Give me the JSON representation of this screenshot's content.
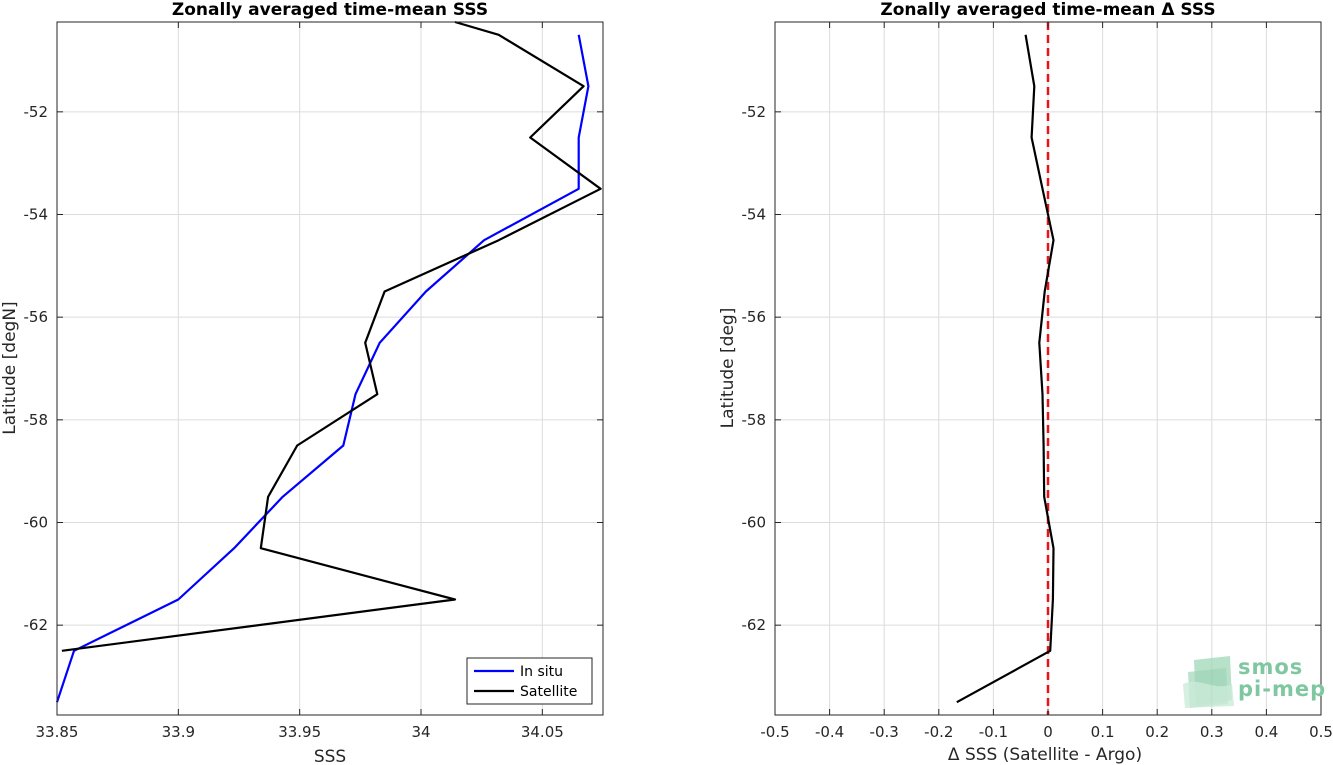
{
  "colors": {
    "in_situ": "#0000ff",
    "satellite": "#000000",
    "zero_line": "#e8141c",
    "grid": "#dcdcdc",
    "axis": "#262626",
    "logo": "#7fc7a0"
  },
  "logo": {
    "line1": "smos",
    "line2": "pi-mep",
    "icon": "layered-wave-icon"
  },
  "chart_data": [
    {
      "type": "line",
      "title": "Zonally averaged time-mean SSS",
      "xlabel": "SSS",
      "ylabel": "Latitude [degN]",
      "xlim": [
        33.85,
        34.075
      ],
      "ylim": [
        -63.75,
        -50.25
      ],
      "xticks": [
        33.85,
        33.9,
        33.95,
        34,
        34.05
      ],
      "xtick_labels": [
        "33.85",
        "33.9",
        "33.95",
        "34",
        "34.05"
      ],
      "yticks": [
        -62,
        -60,
        -58,
        -56,
        -54,
        -52
      ],
      "ytick_labels": [
        "-62",
        "-60",
        "-58",
        "-56",
        "-54",
        "-52"
      ],
      "grid": true,
      "legend_position": "bottom-right",
      "series": [
        {
          "name": "In situ",
          "color": "#0000ff",
          "points": [
            [
              34.065,
              -50.5
            ],
            [
              34.069,
              -51.5
            ],
            [
              34.065,
              -52.5
            ],
            [
              34.065,
              -53.5
            ],
            [
              34.026,
              -54.5
            ],
            [
              34.002,
              -55.5
            ],
            [
              33.983,
              -56.5
            ],
            [
              33.973,
              -57.5
            ],
            [
              33.968,
              -58.5
            ],
            [
              33.943,
              -59.5
            ],
            [
              33.923,
              -60.5
            ],
            [
              33.9,
              -61.5
            ],
            [
              33.857,
              -62.5
            ],
            [
              33.85,
              -63.5
            ]
          ]
        },
        {
          "name": "Satellite",
          "color": "#000000",
          "points": [
            [
              34.014,
              -50.25
            ],
            [
              34.032,
              -50.5
            ],
            [
              34.067,
              -51.5
            ],
            [
              34.045,
              -52.5
            ],
            [
              34.074,
              -53.5
            ],
            [
              34.032,
              -54.5
            ],
            [
              33.985,
              -55.5
            ],
            [
              33.977,
              -56.5
            ],
            [
              33.982,
              -57.5
            ],
            [
              33.949,
              -58.5
            ],
            [
              33.937,
              -59.5
            ],
            [
              33.934,
              -60.5
            ],
            [
              34.014,
              -61.5
            ],
            [
              33.852,
              -62.5
            ]
          ]
        }
      ]
    },
    {
      "type": "line",
      "title": "Zonally averaged time-mean Δ SSS",
      "xlabel": "Δ SSS (Satellite - Argo)",
      "ylabel": "Latitude [deg]",
      "xlim": [
        -0.5,
        0.5
      ],
      "ylim": [
        -63.75,
        -50.25
      ],
      "xticks": [
        -0.5,
        -0.4,
        -0.3,
        -0.2,
        -0.1,
        0,
        0.1,
        0.2,
        0.3,
        0.4,
        0.5
      ],
      "xtick_labels": [
        "-0.5",
        "-0.4",
        "-0.3",
        "-0.2",
        "-0.1",
        "0",
        "0.1",
        "0.2",
        "0.3",
        "0.4",
        "0.5"
      ],
      "yticks": [
        -62,
        -60,
        -58,
        -56,
        -54,
        -52
      ],
      "ytick_labels": [
        "-62",
        "-60",
        "-58",
        "-56",
        "-54",
        "-52"
      ],
      "grid": true,
      "reference_line": {
        "x": 0,
        "style": "dashed",
        "color": "#e8141c"
      },
      "series": [
        {
          "color": "#000000",
          "points": [
            [
              -0.041,
              -50.5
            ],
            [
              -0.025,
              -51.5
            ],
            [
              -0.03,
              -52.5
            ],
            [
              -0.01,
              -53.5
            ],
            [
              0.01,
              -54.5
            ],
            [
              -0.006,
              -55.5
            ],
            [
              -0.016,
              -56.5
            ],
            [
              -0.01,
              -57.5
            ],
            [
              -0.008,
              -58.5
            ],
            [
              -0.007,
              -59.5
            ],
            [
              0.01,
              -60.5
            ],
            [
              0.009,
              -61.5
            ],
            [
              0.004,
              -62.5
            ],
            [
              -0.167,
              -63.5
            ]
          ]
        }
      ]
    }
  ]
}
